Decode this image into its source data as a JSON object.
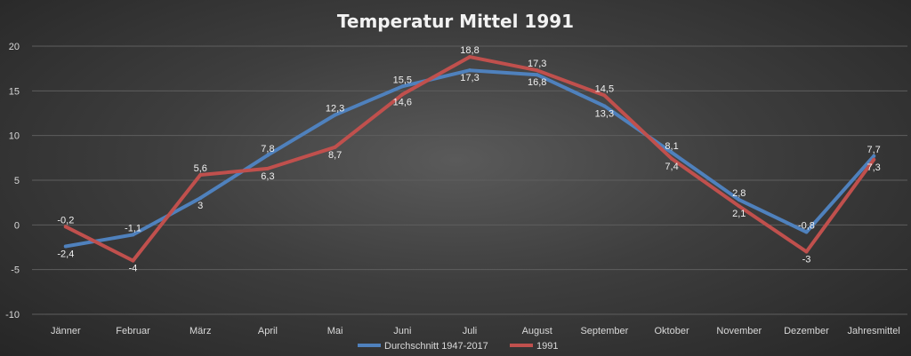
{
  "chart_data": {
    "type": "line",
    "title": "Temperatur Mittel 1991",
    "categories": [
      "Jänner",
      "Februar",
      "März",
      "April",
      "Mai",
      "Juni",
      "Juli",
      "August",
      "September",
      "Oktober",
      "November",
      "Dezember",
      "Jahresmittel"
    ],
    "series": [
      {
        "name": "Durchschnitt 1947-2017",
        "color": "#4f81bd",
        "values": [
          -2.4,
          -1.1,
          3,
          7.8,
          12.3,
          15.5,
          17.3,
          16.8,
          13.3,
          8.1,
          2.8,
          -0.8,
          7.7
        ],
        "labels": [
          "-2,4",
          "-1,1",
          "3",
          "7,8",
          "12,3",
          "15,5",
          "17,3",
          "16,8",
          "13,3",
          "8,1",
          "2,8",
          "-0,8",
          "7,7"
        ]
      },
      {
        "name": "1991",
        "color": "#c0504d",
        "values": [
          -0.2,
          -4,
          5.6,
          6.3,
          8.7,
          14.6,
          18.8,
          17.3,
          14.5,
          7.4,
          2.1,
          -3,
          7.3
        ],
        "labels": [
          "-0,2",
          "-4",
          "5,6",
          "6,3",
          "8,7",
          "14,6",
          "18,8",
          "17,3",
          "14,5",
          "7,4",
          "2,1",
          "-3",
          "7,3"
        ]
      }
    ],
    "ylim": [
      -10,
      20
    ],
    "yticks": [
      -10,
      -5,
      0,
      5,
      10,
      15,
      20
    ],
    "grid": true,
    "legend": "bottom"
  }
}
